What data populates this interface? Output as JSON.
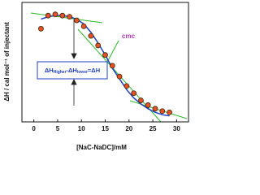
{
  "chart_data": {
    "type": "scatter",
    "x_label": "[NaC-NaDC]/mM",
    "y_label": "ΔH / cal mol⁻¹ of injectant",
    "annotations": {
      "cmc": "cmc",
      "equation": [
        "ΔH",
        "Higher",
        "-ΔH",
        "lower",
        "=ΔH"
      ]
    },
    "x": [
      1.5,
      3,
      4.5,
      6,
      7.5,
      9,
      10.5,
      12,
      13.5,
      15,
      16.5,
      18,
      19.5,
      21,
      22.5,
      24,
      25.5,
      27,
      28.5
    ],
    "series": [
      {
        "color": "#e8502a",
        "marker": true,
        "values": [
          78,
          89,
          90,
          89,
          88,
          85,
          80,
          72,
          64,
          56,
          47,
          38,
          30,
          24,
          18,
          14,
          11,
          9,
          8
        ]
      },
      {
        "color": "#1f3fbf",
        "marker": false,
        "values": [
          86,
          88,
          89,
          89,
          88,
          86,
          82,
          75,
          66,
          56,
          45,
          36,
          27,
          20,
          15,
          11,
          8,
          6,
          5
        ]
      }
    ],
    "xlim": [
      -2.5,
      32.5
    ],
    "xticks": [
      0,
      5,
      10,
      15,
      20,
      25,
      30
    ],
    "ylim": [
      0,
      100
    ]
  }
}
